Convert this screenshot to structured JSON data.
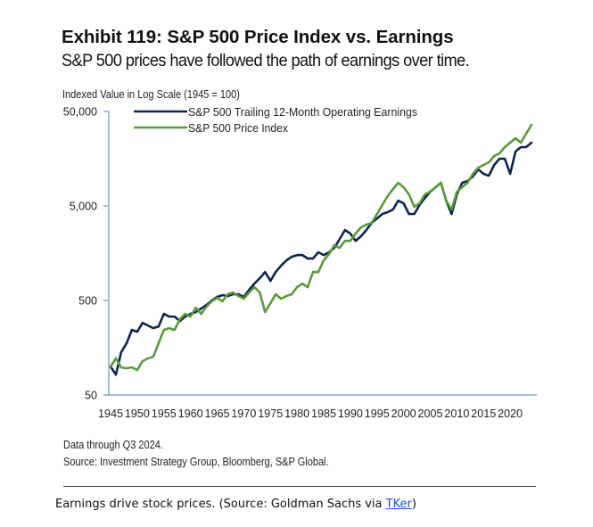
{
  "chart_data": {
    "type": "line",
    "title": "Exhibit 119: S&P 500 Price Index vs. Earnings",
    "subtitle": "S&P 500 prices have followed the path of earnings over time.",
    "xlabel": "",
    "ylabel": "Indexed Value in Log Scale (1945 = 100)",
    "yscale": "log",
    "ylim": [
      50,
      50000
    ],
    "xlim": [
      1945,
      2025
    ],
    "yticks": [
      50,
      500,
      5000,
      50000
    ],
    "ytick_labels": [
      "50",
      "500",
      "5,000",
      "50,000"
    ],
    "xticks": [
      1945,
      1950,
      1955,
      1960,
      1965,
      1970,
      1975,
      1980,
      1985,
      1990,
      1995,
      2000,
      2005,
      2010,
      2015,
      2020
    ],
    "xtick_labels": [
      "1945",
      "1950",
      "1955",
      "1960",
      "1965",
      "1970",
      "1975",
      "1980",
      "1985",
      "1990",
      "1995",
      "2000",
      "2005",
      "2010",
      "2015",
      "2020"
    ],
    "grid": false,
    "legend_position": "top-left",
    "x": [
      1945,
      1946,
      1947,
      1948,
      1949,
      1950,
      1951,
      1952,
      1953,
      1954,
      1955,
      1956,
      1957,
      1958,
      1959,
      1960,
      1961,
      1962,
      1963,
      1964,
      1965,
      1966,
      1967,
      1968,
      1969,
      1970,
      1971,
      1972,
      1973,
      1974,
      1975,
      1976,
      1977,
      1978,
      1979,
      1980,
      1981,
      1982,
      1983,
      1984,
      1985,
      1986,
      1987,
      1988,
      1989,
      1990,
      1991,
      1992,
      1993,
      1994,
      1995,
      1996,
      1997,
      1998,
      1999,
      2000,
      2001,
      2002,
      2003,
      2004,
      2005,
      2006,
      2007,
      2008,
      2009,
      2010,
      2011,
      2012,
      2013,
      2014,
      2015,
      2016,
      2017,
      2018,
      2019,
      2020,
      2021,
      2022,
      2023,
      2024
    ],
    "series": [
      {
        "name": "S&P 500 Trailing 12-Month Operating Earnings",
        "color": "#0b2550",
        "values": [
          100,
          82,
          142,
          176,
          244,
          234,
          290,
          272,
          255,
          266,
          361,
          338,
          338,
          303,
          338,
          361,
          377,
          411,
          449,
          500,
          545,
          570,
          557,
          582,
          582,
          545,
          649,
          755,
          861,
          1000,
          807,
          1000,
          1170,
          1330,
          1450,
          1510,
          1510,
          1390,
          1390,
          1620,
          1510,
          1620,
          1800,
          2240,
          2780,
          2550,
          2140,
          2390,
          2780,
          3310,
          3690,
          4110,
          4300,
          4580,
          5700,
          5340,
          4110,
          4110,
          5110,
          6080,
          7080,
          7890,
          8790,
          5700,
          4110,
          6630,
          8790,
          9180,
          10230,
          12190,
          10930,
          10470,
          13590,
          15810,
          15810,
          10930,
          18800,
          20970,
          20970,
          23380
        ]
      },
      {
        "name": "S&P 500 Price Index",
        "color": "#5a9a3a",
        "values": [
          100,
          122,
          98,
          96,
          98,
          92,
          114,
          122,
          127,
          176,
          244,
          255,
          244,
          317,
          361,
          338,
          420,
          361,
          430,
          490,
          533,
          490,
          582,
          608,
          557,
          522,
          608,
          693,
          608,
          377,
          468,
          582,
          522,
          557,
          582,
          693,
          755,
          693,
          1000,
          1000,
          1330,
          1550,
          1920,
          1800,
          2140,
          2140,
          2550,
          2970,
          3170,
          3310,
          4110,
          5110,
          6350,
          7550,
          8790,
          7890,
          6630,
          4900,
          5340,
          6630,
          7080,
          7890,
          8790,
          5700,
          4580,
          7080,
          7890,
          8790,
          10930,
          12730,
          13590,
          14500,
          16880,
          18040,
          20970,
          23380,
          26070,
          23380,
          29040,
          36100
        ]
      }
    ]
  },
  "legend": {
    "earnings_label": "S&P 500 Trailing 12-Month Operating Earnings",
    "price_label": "S&P 500 Price Index"
  },
  "notes": {
    "data_through": "Data through Q3 2024.",
    "source": "Source: Investment Strategy Group, Bloomberg, S&P Global."
  },
  "caption": {
    "text_before": "Earnings drive stock prices. (Source: Goldman Sachs via ",
    "link_text": "TKer",
    "text_after": ")"
  },
  "colors": {
    "axis": "#6f93c8",
    "earnings": "#0b2550",
    "price": "#5a9a3a",
    "link": "#1a4fd6"
  }
}
